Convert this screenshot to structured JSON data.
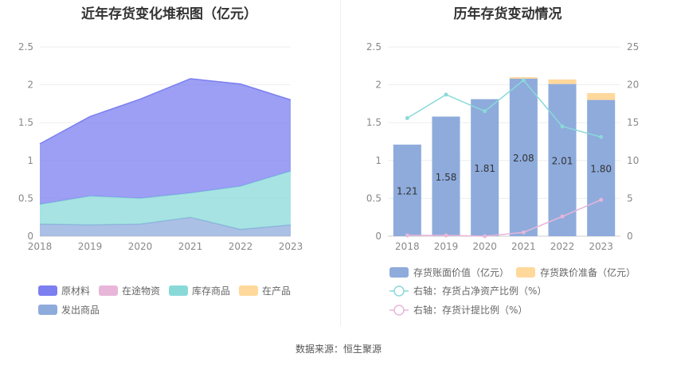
{
  "left_title": "近年存货变化堆积图（亿元）",
  "right_title": "历年存货变动情况",
  "source": "数据来源：恒生聚源",
  "chart_data": [
    {
      "type": "area",
      "stacked": true,
      "title": "近年存货变化堆积图（亿元）",
      "x": [
        "2018",
        "2019",
        "2020",
        "2021",
        "2022",
        "2023"
      ],
      "ylim": [
        0,
        2.5
      ],
      "yticks": [
        "0",
        "0.5",
        "1",
        "1.5",
        "2",
        "2.5"
      ],
      "grid": true,
      "legend_position": "bottom-left",
      "series": [
        {
          "name": "发出商品",
          "color": "#8eabdc",
          "values": [
            0.16,
            0.15,
            0.16,
            0.25,
            0.09,
            0.15
          ]
        },
        {
          "name": "在产品",
          "color": "#ffd89b",
          "values": [
            0,
            0,
            0,
            0,
            0,
            0
          ]
        },
        {
          "name": "库存商品",
          "color": "#8ad9d9",
          "values": [
            0.26,
            0.38,
            0.34,
            0.32,
            0.57,
            0.71
          ]
        },
        {
          "name": "在途物资",
          "color": "#e8b6d8",
          "values": [
            0,
            0,
            0,
            0,
            0,
            0
          ]
        },
        {
          "name": "原材料",
          "color": "#7b7ff0",
          "values": [
            0.8,
            1.05,
            1.31,
            1.51,
            1.35,
            0.94
          ]
        }
      ],
      "legend_order": [
        "原材料",
        "在途物资",
        "库存商品",
        "在产品",
        "发出商品"
      ]
    },
    {
      "type": "bar",
      "title": "历年存货变动情况",
      "categories": [
        "2018",
        "2019",
        "2020",
        "2021",
        "2022",
        "2023"
      ],
      "ylim": [
        0,
        2.5
      ],
      "yticks": [
        "0",
        "0.5",
        "1",
        "1.5",
        "2",
        "2.5"
      ],
      "y2lim": [
        0,
        25
      ],
      "y2ticks": [
        "0",
        "5",
        "10",
        "15",
        "20",
        "25"
      ],
      "grid": true,
      "legend_position": "bottom-left",
      "series": [
        {
          "name": "存货账面价值（亿元）",
          "kind": "bar",
          "color": "#8eabdc",
          "values": [
            1.21,
            1.58,
            1.81,
            2.08,
            2.01,
            1.8
          ],
          "labels": [
            "1.21",
            "1.58",
            "1.81",
            "2.08",
            "2.01",
            "1.80"
          ]
        },
        {
          "name": "存货跌价准备（亿元）",
          "kind": "bar-stacked",
          "color": "#ffd89b",
          "values": [
            0,
            0,
            0,
            0.02,
            0.06,
            0.09
          ]
        },
        {
          "name": "右轴：存货占净资产比例（%）",
          "kind": "line",
          "axis": "right",
          "color": "#8ad9d9",
          "values": [
            15.6,
            18.7,
            16.5,
            20.6,
            14.5,
            13.1
          ]
        },
        {
          "name": "右轴：存货计提比例（%）",
          "kind": "line",
          "axis": "right",
          "color": "#e8b6d8",
          "values": [
            0.1,
            0.1,
            0.0,
            0.5,
            2.6,
            4.8
          ]
        }
      ]
    }
  ]
}
